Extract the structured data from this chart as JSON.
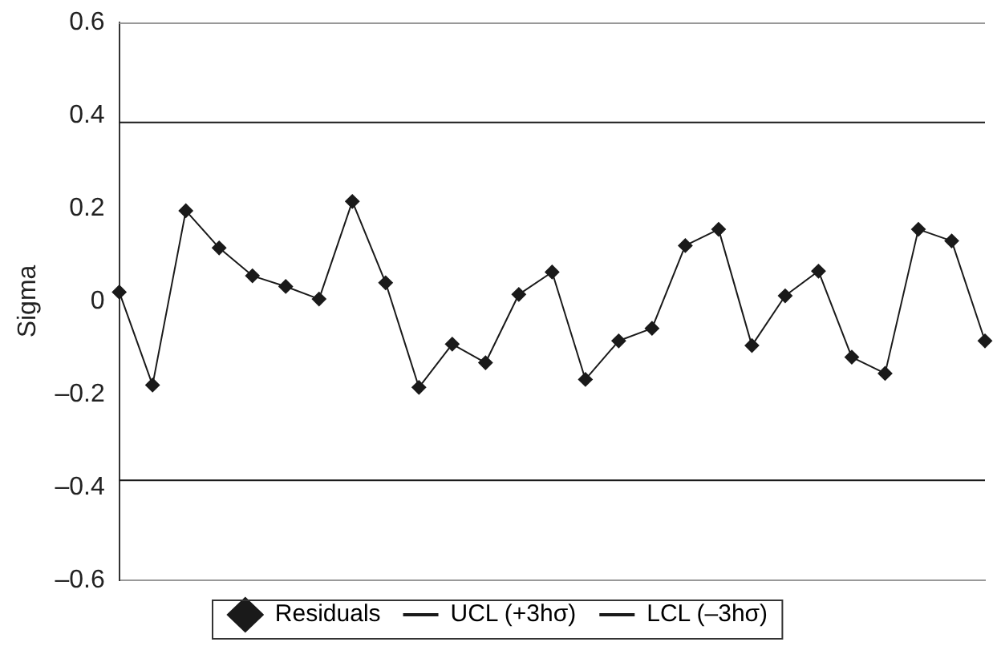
{
  "chart_data": {
    "type": "line",
    "ylabel": "Sigma",
    "categories": [
      null,
      null,
      null,
      null,
      null,
      null,
      null,
      null,
      null,
      null,
      null,
      null,
      null,
      null,
      null,
      null,
      null,
      null,
      null,
      null,
      null,
      null,
      null,
      null,
      null,
      null,
      null
    ],
    "series": [
      {
        "name": "Residuals",
        "color": "#1a1a1a",
        "marker": "diamond",
        "values": [
          0.02,
          -0.18,
          0.195,
          0.115,
          0.055,
          0.032,
          0.005,
          0.215,
          0.04,
          -0.185,
          -0.092,
          -0.132,
          0.015,
          0.063,
          -0.168,
          -0.085,
          -0.058,
          0.12,
          0.155,
          -0.095,
          0.012,
          0.065,
          -0.12,
          -0.155,
          0.155,
          0.13,
          -0.085
        ]
      },
      {
        "name": "UCL (+3hσ)",
        "color": "#1a1a1a",
        "marker": "none",
        "values": [
          0.385,
          0.385,
          0.385,
          0.385,
          0.385,
          0.385,
          0.385,
          0.385,
          0.385,
          0.385,
          0.385,
          0.385,
          0.385,
          0.385,
          0.385,
          0.385,
          0.385,
          0.385,
          0.385,
          0.385,
          0.385,
          0.385,
          0.385,
          0.385,
          0.385,
          0.385,
          0.385
        ]
      },
      {
        "name": "LCL (–3hσ)",
        "color": "#1a1a1a",
        "marker": "none",
        "values": [
          -0.385,
          -0.385,
          -0.385,
          -0.385,
          -0.385,
          -0.385,
          -0.385,
          -0.385,
          -0.385,
          -0.385,
          -0.385,
          -0.385,
          -0.385,
          -0.385,
          -0.385,
          -0.385,
          -0.385,
          -0.385,
          -0.385,
          -0.385,
          -0.385,
          -0.385,
          -0.385,
          -0.385,
          -0.385,
          -0.385,
          -0.385
        ]
      }
    ],
    "ylim": [
      -0.6,
      0.6
    ],
    "yticks": [
      {
        "value": -0.6,
        "label": "–0.6"
      },
      {
        "value": -0.4,
        "label": "–0.4"
      },
      {
        "value": -0.2,
        "label": "–0.2"
      },
      0,
      0.2,
      0.4,
      0.6
    ],
    "grid": false,
    "legend": "bottom",
    "line_style": "solid"
  }
}
